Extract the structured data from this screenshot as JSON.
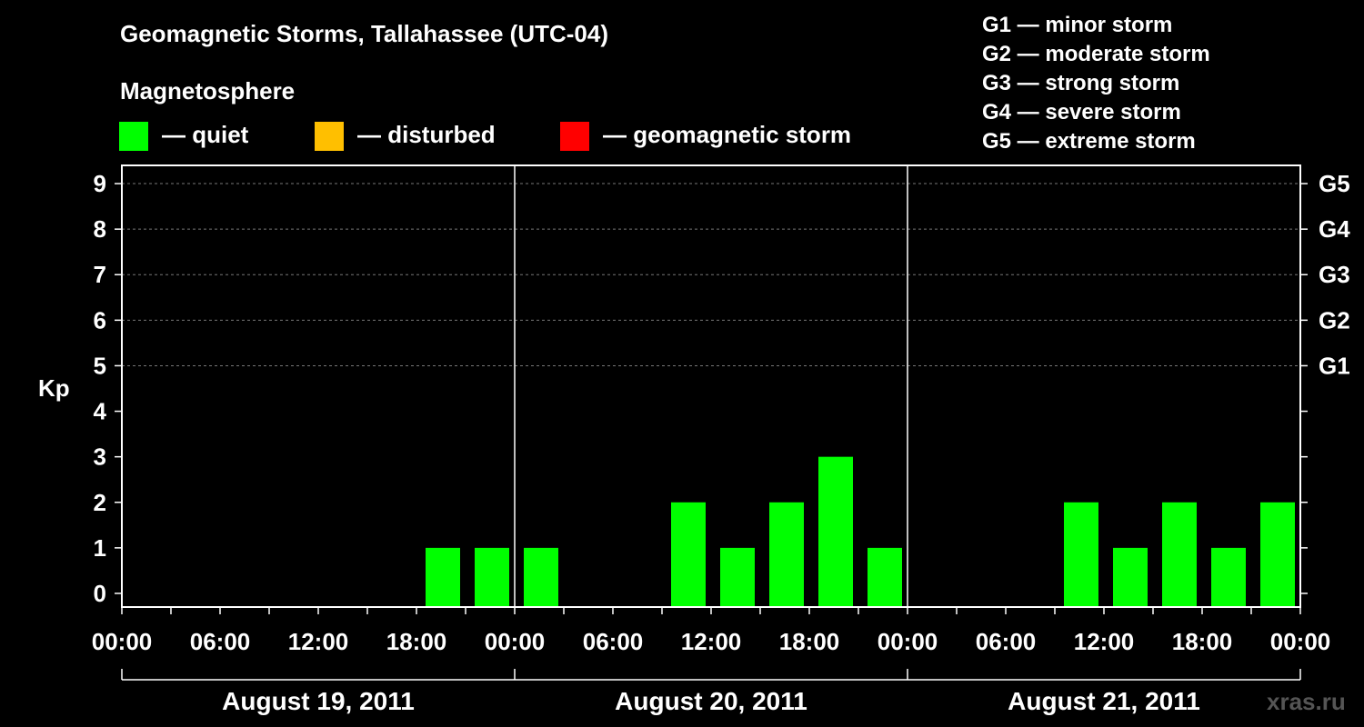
{
  "header": {
    "title": "Geomagnetic Storms, Tallahassee (UTC-04)",
    "magnetosphere_title": "Magnetosphere",
    "legend": [
      {
        "label": "— quiet",
        "color": "#00ff00"
      },
      {
        "label": "— disturbed",
        "color": "#ffbf00"
      },
      {
        "label": "— geomagnetic storm",
        "color": "#ff0000"
      }
    ],
    "g_scale": [
      "G1 — minor storm",
      "G2 — moderate storm",
      "G3 — strong storm",
      "G4 — severe storm",
      "G5 — extreme storm"
    ]
  },
  "watermark": "xras.ru",
  "chart_data": {
    "type": "bar",
    "ylabel": "Kp",
    "ylim": [
      -0.3,
      9.4
    ],
    "y_ticks": [
      "0",
      "1",
      "2",
      "3",
      "4",
      "5",
      "6",
      "7",
      "8",
      "9"
    ],
    "right_labels": [
      {
        "kp": 5,
        "label": "G1"
      },
      {
        "kp": 6,
        "label": "G2"
      },
      {
        "kp": 7,
        "label": "G3"
      },
      {
        "kp": 8,
        "label": "G4"
      },
      {
        "kp": 9,
        "label": "G5"
      }
    ],
    "x_range_hours": [
      0,
      72
    ],
    "x_tick_labels": [
      "00:00",
      "06:00",
      "12:00",
      "18:00",
      "00:00",
      "06:00",
      "12:00",
      "18:00",
      "00:00",
      "06:00",
      "12:00",
      "18:00",
      "00:00"
    ],
    "days": [
      "August 19, 2011",
      "August 20, 2011",
      "August 21, 2011"
    ],
    "bin_hours": 3,
    "quiet_color": "#00ff00",
    "bars": [
      {
        "start_hour": 18,
        "kp": 1
      },
      {
        "start_hour": 21,
        "kp": 1
      },
      {
        "start_hour": 24,
        "kp": 1
      },
      {
        "start_hour": 33,
        "kp": 2
      },
      {
        "start_hour": 36,
        "kp": 1
      },
      {
        "start_hour": 39,
        "kp": 2
      },
      {
        "start_hour": 42,
        "kp": 3
      },
      {
        "start_hour": 45,
        "kp": 1
      },
      {
        "start_hour": 57,
        "kp": 2
      },
      {
        "start_hour": 60,
        "kp": 1
      },
      {
        "start_hour": 63,
        "kp": 2
      },
      {
        "start_hour": 66,
        "kp": 1
      },
      {
        "start_hour": 69,
        "kp": 2
      }
    ]
  }
}
